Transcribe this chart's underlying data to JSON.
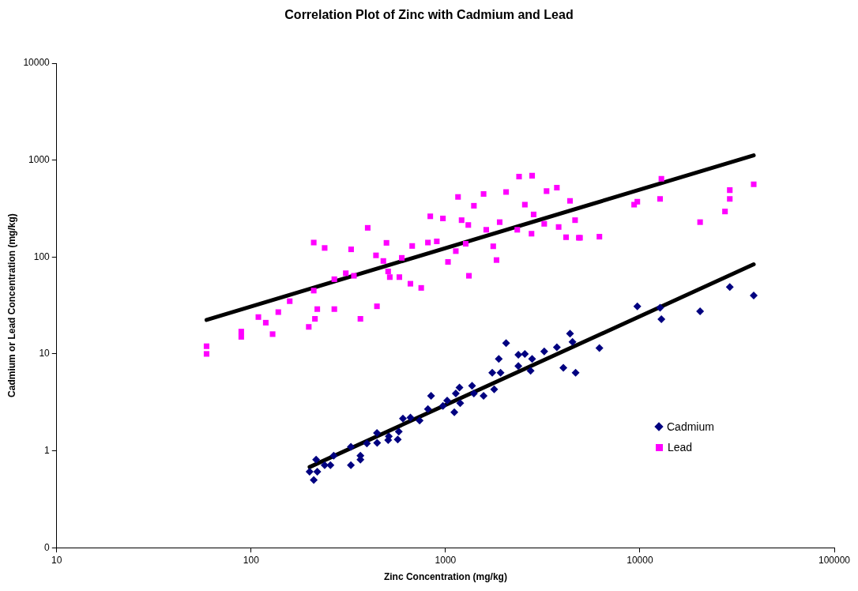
{
  "chart_data": {
    "type": "scatter",
    "title": "Correlation Plot of Zinc with Cadmium and Lead",
    "xlabel": "Zinc Concentration (mg/kg)",
    "ylabel": "Cadmium or Lead Concentration (mg/kg)",
    "log": "xy",
    "grid": false,
    "legend": "right",
    "xlim": [
      10,
      100000
    ],
    "xticks": [
      10,
      100,
      1000,
      10000,
      100000
    ],
    "ylim": [
      0.1,
      10000
    ],
    "yticks": [
      {
        "value": 0.1,
        "label": "0"
      },
      1,
      10,
      100,
      1000,
      10000
    ],
    "series": [
      {
        "name": "Cadmium",
        "marker": "diamond",
        "color": "#000080",
        "x": [
          200,
          210,
          216,
          219,
          239,
          256,
          266,
          326,
          326,
          365,
          365,
          394,
          444,
          445,
          511,
          507,
          568,
          575,
          604,
          660,
          736,
          812,
          843,
          970,
          1020,
          1110,
          1130,
          1180,
          1190,
          1370,
          1400,
          1570,
          1740,
          1780,
          1880,
          1920,
          2050,
          2370,
          2560,
          2370,
          2790,
          2740,
          3220,
          3740,
          4040,
          4370,
          4500,
          4670,
          6190,
          9700,
          12700,
          12900,
          20400,
          29000,
          38500
        ],
        "values": [
          0.61,
          0.5,
          0.81,
          0.61,
          0.71,
          0.71,
          0.89,
          1.1,
          0.71,
          0.89,
          0.81,
          1.19,
          1.53,
          1.21,
          1.41,
          1.29,
          1.31,
          1.58,
          2.15,
          2.2,
          2.05,
          2.7,
          3.7,
          2.9,
          3.3,
          2.5,
          3.9,
          4.5,
          3.1,
          4.7,
          3.9,
          3.7,
          6.4,
          4.3,
          8.9,
          6.4,
          12.9,
          9.8,
          10,
          7.5,
          8.9,
          6.7,
          10.6,
          11.7,
          7.2,
          16.2,
          13.3,
          6.4,
          11.5,
          31,
          30,
          22.8,
          27.5,
          49,
          40
        ]
      },
      {
        "name": "Lead",
        "marker": "square",
        "color": "#ff00ff",
        "x": [
          59,
          59,
          89,
          89,
          109,
          119,
          129,
          138,
          158,
          198,
          210,
          213,
          219,
          239,
          268,
          307,
          327,
          338,
          365,
          398,
          439,
          444,
          479,
          497,
          507,
          517,
          579,
          596,
          660,
          674,
          750,
          812,
          835,
          902,
          970,
          1030,
          1130,
          1160,
          1210,
          1270,
          1310,
          1320,
          1400,
          1570,
          1620,
          1760,
          1830,
          1900,
          2050,
          2340,
          2390,
          2560,
          2770,
          2790,
          2840,
          3220,
          3310,
          3740,
          3820,
          4170,
          4370,
          4640,
          4920,
          6190,
          9340,
          9700,
          12700,
          12900,
          20400,
          27400,
          29000,
          29000,
          38500,
          4850,
          210,
          268
        ],
        "values": [
          12,
          10,
          17,
          15,
          24,
          21,
          16,
          27,
          35,
          19,
          141,
          23,
          29,
          124,
          29,
          68,
          120,
          64,
          23,
          200,
          104,
          31,
          91,
          140,
          71,
          62,
          62,
          98,
          53,
          130,
          48,
          141,
          263,
          145,
          250,
          89,
          115,
          417,
          240,
          137,
          214,
          64,
          338,
          447,
          191,
          129,
          93,
          229,
          468,
          191,
          676,
          347,
          174,
          690,
          275,
          220,
          479,
          520,
          204,
          160,
          380,
          240,
          158,
          162,
          347,
          372,
          398,
          643,
          229,
          295,
          490,
          398,
          562,
          158,
          45,
          59
        ]
      },
      {
        "type": "line",
        "marker": "none",
        "color": "#000000",
        "x": [
          59,
          38500
        ],
        "values": [
          22.4,
          1120
        ]
      },
      {
        "type": "line",
        "marker": "none",
        "color": "#000000",
        "x": [
          200,
          38500
        ],
        "values": [
          0.68,
          84
        ]
      }
    ]
  }
}
